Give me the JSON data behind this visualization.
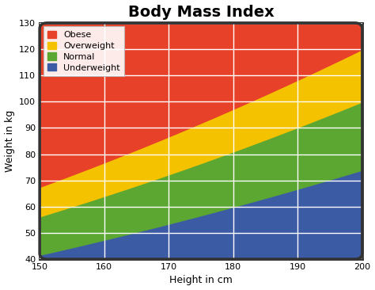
{
  "title": "Body Mass Index",
  "xlabel": "Height in cm",
  "ylabel": "Weight in kg",
  "xlim": [
    150,
    200
  ],
  "ylim": [
    40,
    130
  ],
  "xticks": [
    150,
    160,
    170,
    180,
    190,
    200
  ],
  "yticks": [
    40,
    50,
    60,
    70,
    80,
    90,
    100,
    110,
    120,
    130
  ],
  "bmi_thresholds": [
    18.5,
    25,
    30
  ],
  "colors": {
    "underweight": "#3C5BA5",
    "normal": "#5CA632",
    "overweight": "#F5C200",
    "obese": "#E8412A"
  },
  "legend_labels": [
    "Obese",
    "Overweight",
    "Normal",
    "Underweight"
  ],
  "legend_colors": [
    "#E8412A",
    "#F5C200",
    "#5CA632",
    "#3C5BA5"
  ],
  "background_color": "#ffffff",
  "grid_color": "#ffffff",
  "border_color": "#333333",
  "title_fontsize": 14,
  "label_fontsize": 9,
  "tick_fontsize": 8
}
